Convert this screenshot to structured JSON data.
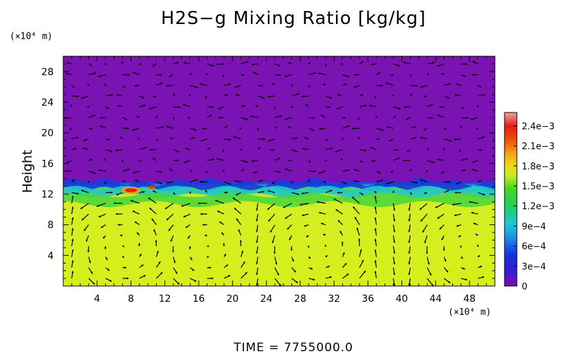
{
  "chart_data": {
    "type": "heatmap",
    "title": "H2S−g Mixing Ratio [kg/kg]",
    "ylabel": "Height",
    "x_unit": "(×10⁴ m)",
    "y_unit": "(×10⁴ m)",
    "xlim": [
      0,
      51
    ],
    "ylim": [
      0,
      30
    ],
    "x_ticks": [
      4,
      8,
      12,
      16,
      20,
      24,
      28,
      32,
      36,
      40,
      44,
      48
    ],
    "y_ticks": [
      4,
      8,
      12,
      16,
      20,
      24,
      28
    ],
    "colorbar": {
      "ticks": [
        "2.4e−3",
        "2.1e−3",
        "1.8e−3",
        "1.5e−3",
        "1.2e−3",
        "9e−4",
        "6e−4",
        "3e−4",
        "0"
      ],
      "values": [
        0.0024,
        0.0021,
        0.0018,
        0.0015,
        0.0012,
        0.0009,
        0.0006,
        0.0003,
        0
      ],
      "range": [
        0,
        0.0026
      ]
    },
    "fields": {
      "upper_layer": {
        "height_range": [
          13.5,
          30
        ],
        "value": 0
      },
      "interface_height": 13,
      "lower_layer": {
        "height_range": [
          0,
          10.5
        ],
        "value": 0.00165
      },
      "transition_layer": {
        "height_range": [
          10.5,
          13.5
        ],
        "value_range": [
          0.0009,
          0.0018
        ]
      },
      "local_maximum": {
        "x": 8,
        "y": 12.5,
        "value": 0.0025
      }
    },
    "vector_overlay": true,
    "time_label": "TIME  =  7755000.0"
  },
  "colors": {
    "zero": "#7a12b4",
    "low_blue": "#2a2ad0",
    "cyan": "#1ec0d8",
    "green": "#30d530",
    "yellow_green": "#d4ef20",
    "yellow": "#e6e62a",
    "orange": "#f28a10",
    "red": "#e01010",
    "pink": "#f0a0a0"
  }
}
